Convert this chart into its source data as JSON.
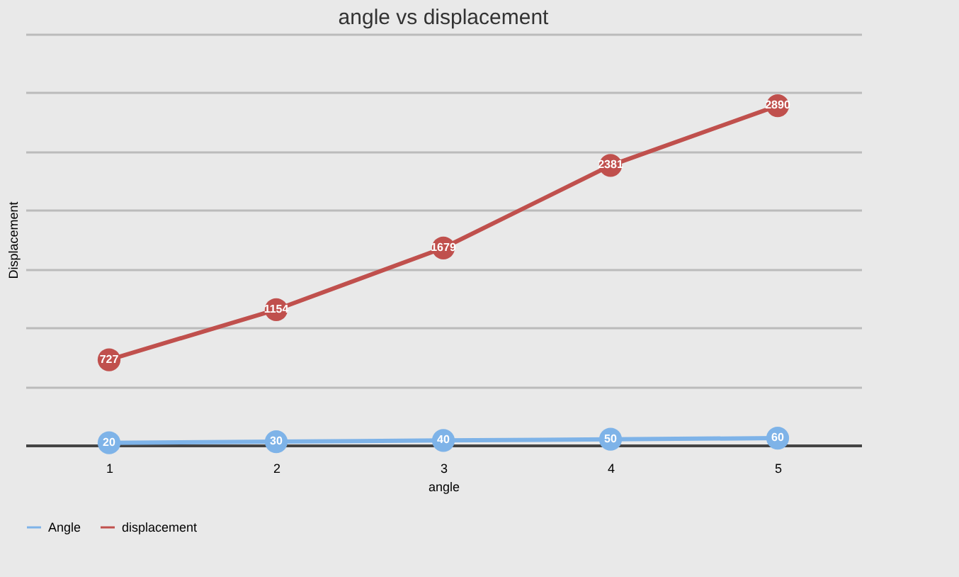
{
  "chart_data": {
    "type": "line",
    "title": "angle vs displacement",
    "xlabel": "angle",
    "ylabel": "Displacement",
    "categories": [
      "1",
      "2",
      "3",
      "4",
      "5"
    ],
    "series": [
      {
        "name": "Angle",
        "color": "#7eb3e8",
        "values": [
          20,
          30,
          40,
          50,
          60
        ]
      },
      {
        "name": "displacement",
        "color": "#c0504d",
        "values": [
          727,
          1154,
          1679,
          2381,
          2890
        ]
      }
    ],
    "ylim": [
      0,
      3500
    ],
    "yticks": [
      {
        "value": 0,
        "label": null
      },
      {
        "value": 500,
        "label": null
      },
      {
        "value": 1000,
        "label": null
      },
      {
        "value": 1500,
        "label": null
      },
      {
        "value": 2000,
        "label": null
      },
      {
        "value": 2500,
        "label": null
      },
      {
        "value": 3000,
        "label": null
      },
      {
        "value": 3500,
        "label": null
      }
    ],
    "tick_labels": "x",
    "grid": "y",
    "legend": "bottom",
    "marker": "circle",
    "line_style": "solid",
    "data_labels": true
  }
}
